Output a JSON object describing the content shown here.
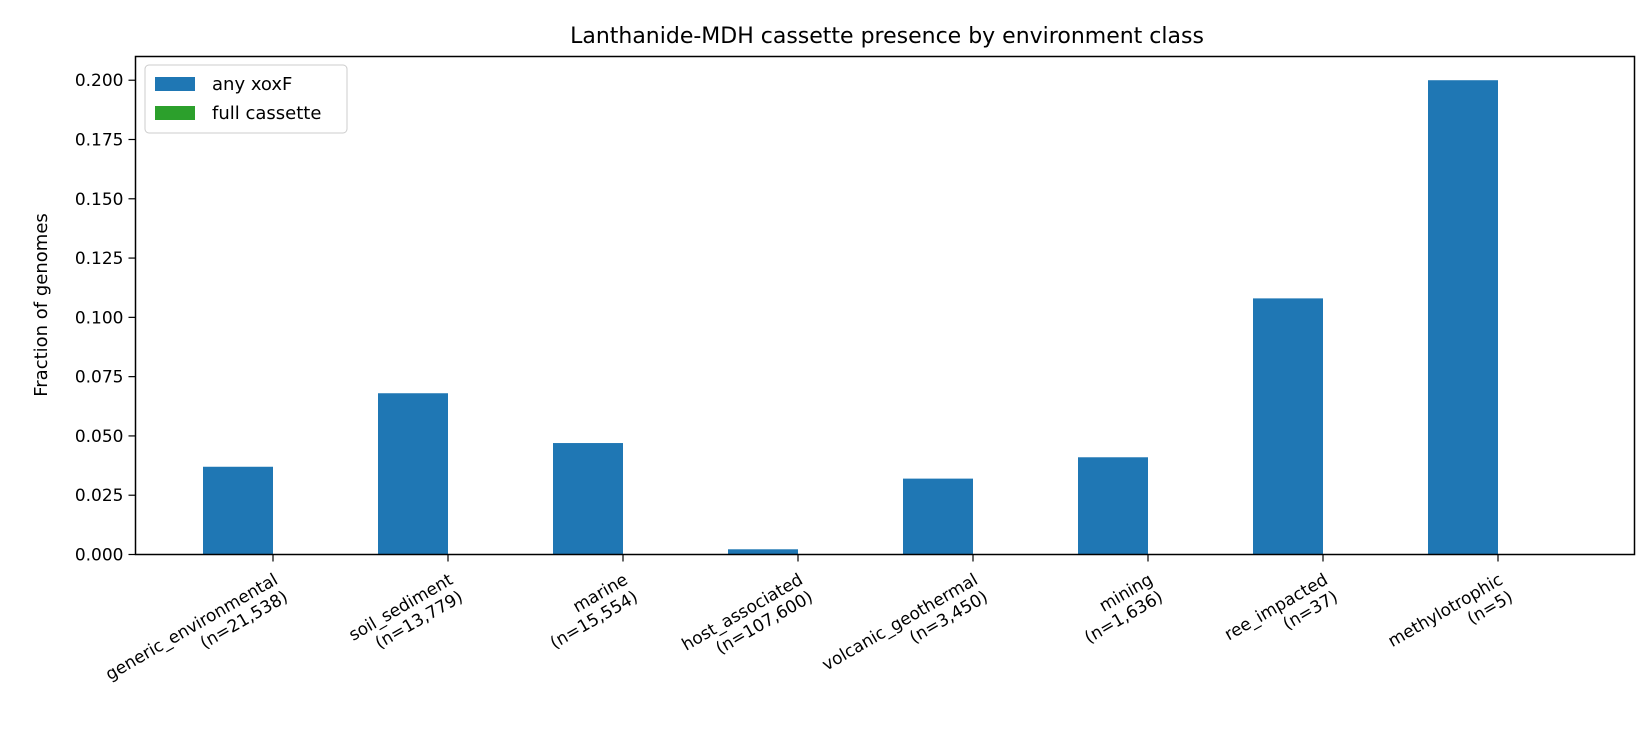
{
  "chart_data": {
    "type": "bar",
    "title": "Lanthanide-MDH cassette presence by environment class",
    "xlabel": "",
    "ylabel": "Fraction of genomes",
    "ylim": [
      0,
      0.21
    ],
    "yticks": [
      "0.000",
      "0.025",
      "0.050",
      "0.075",
      "0.100",
      "0.125",
      "0.150",
      "0.175",
      "0.200"
    ],
    "categories": [
      [
        "generic_environmental",
        "(n=21,538)"
      ],
      [
        "soil_sediment",
        "(n=13,779)"
      ],
      [
        "marine",
        "(n=15,554)"
      ],
      [
        "host_associated",
        "(n=107,600)"
      ],
      [
        "volcanic_geothermal",
        "(n=3,450)"
      ],
      [
        "mining",
        "(n=1,636)"
      ],
      [
        "ree_impacted",
        "(n=37)"
      ],
      [
        "methylotrophic",
        "(n=5)"
      ]
    ],
    "series": [
      {
        "name": "any xoxF",
        "color": "#1f77b4",
        "values": [
          0.037,
          0.068,
          0.047,
          0.0022,
          0.032,
          0.041,
          0.108,
          0.2
        ]
      },
      {
        "name": "full cassette",
        "color": "#2ca02c",
        "values": [
          0,
          0,
          0,
          0,
          0,
          0,
          0,
          0
        ]
      }
    ],
    "grid": false,
    "legend_position": "top-left"
  }
}
